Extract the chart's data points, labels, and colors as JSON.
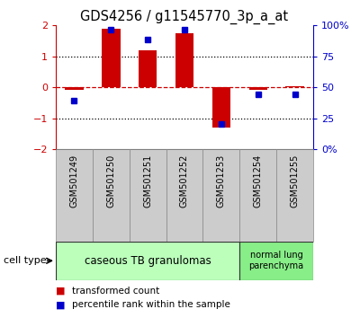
{
  "title": "GDS4256 / g11545770_3p_a_at",
  "samples": [
    "GSM501249",
    "GSM501250",
    "GSM501251",
    "GSM501252",
    "GSM501253",
    "GSM501254",
    "GSM501255"
  ],
  "red_bars": [
    -0.07,
    1.9,
    1.2,
    1.75,
    -1.3,
    -0.07,
    0.05
  ],
  "blue_squares_scaled": [
    -0.42,
    1.85,
    1.55,
    1.85,
    -1.17,
    -0.23,
    -0.23
  ],
  "ylim": [
    -2,
    2
  ],
  "y_left_ticks": [
    -2,
    -1,
    0,
    1,
    2
  ],
  "cell_types": [
    {
      "label": "caseous TB granulomas",
      "samples_range": [
        0,
        4
      ],
      "color": "#bbffbb"
    },
    {
      "label": "normal lung\nparenchyma",
      "samples_range": [
        5,
        6
      ],
      "color": "#88ee88"
    }
  ],
  "red_color": "#cc0000",
  "blue_color": "#0000cc",
  "bar_width": 0.5,
  "background_xtick": "#cccccc",
  "legend_items": [
    {
      "color": "#cc0000",
      "label": "transformed count"
    },
    {
      "color": "#0000cc",
      "label": "percentile rank within the sample"
    }
  ]
}
